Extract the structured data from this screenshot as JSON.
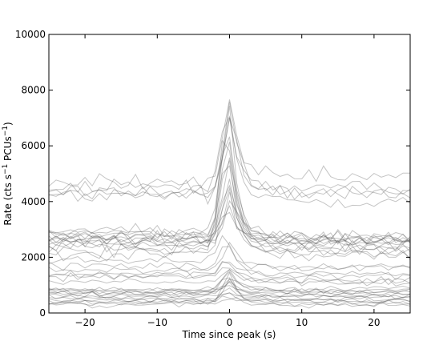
{
  "chart_data": {
    "type": "line",
    "title": "",
    "xlabel": "Time since peak (s)",
    "ylabel_parts": [
      "Rate (cts s",
      "−1",
      " PCUs",
      "−1",
      ")"
    ],
    "xlim": [
      -25,
      25
    ],
    "ylim": [
      0,
      10000
    ],
    "xticks": [
      -20,
      -10,
      0,
      10,
      20
    ],
    "xtick_labels": [
      "−20",
      "−10",
      "0",
      "10",
      "20"
    ],
    "yticks": [
      0,
      2000,
      4000,
      6000,
      8000,
      10000
    ],
    "ytick_labels": [
      "0",
      "2000",
      "4000",
      "6000",
      "8000",
      "10000"
    ],
    "grid": false,
    "line_color": "#555555",
    "sample_step": 1,
    "groups": [
      {
        "count": 5,
        "base_range": [
          4200,
          4800
        ],
        "peak_range": [
          2700,
          3500
        ],
        "noise": 220
      },
      {
        "count": 14,
        "base_range": [
          2000,
          2900
        ],
        "peak_range": [
          1200,
          4800
        ],
        "noise": 170
      },
      {
        "count": 7,
        "base_range": [
          900,
          1900
        ],
        "peak_range": [
          400,
          1200
        ],
        "noise": 110
      },
      {
        "count": 14,
        "base_range": [
          180,
          900
        ],
        "peak_range": [
          100,
          1100
        ],
        "noise": 70
      }
    ]
  }
}
